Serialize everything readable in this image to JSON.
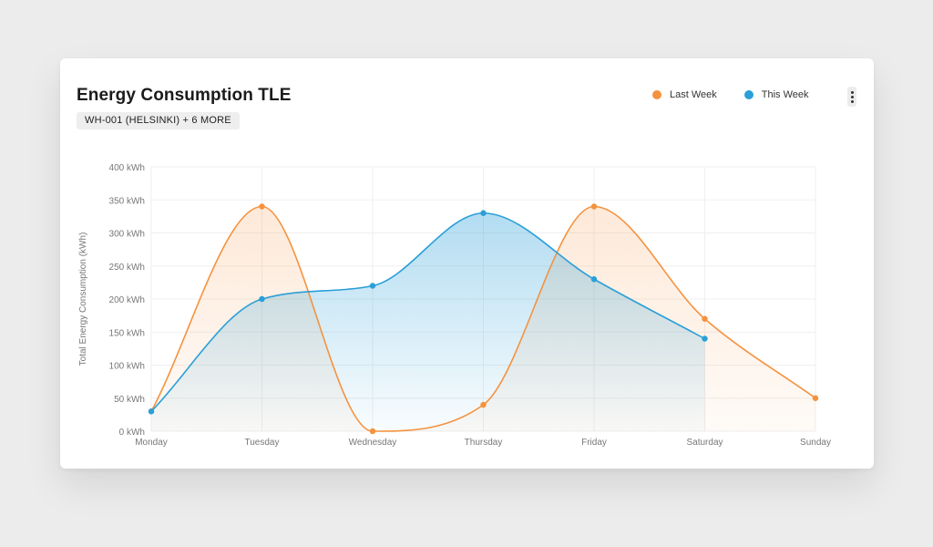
{
  "card": {
    "title": "Energy Consumption TLE",
    "badge": "WH-001 (HELSINKI) + 6 MORE",
    "menu_icon": "more-vertical-icon"
  },
  "chart_data": {
    "type": "area",
    "title": "Energy Consumption TLE",
    "subtitle": "WH-001 (HELSINKI) + 6 MORE",
    "categories": [
      "Monday",
      "Tuesday",
      "Wednesday",
      "Thursday",
      "Friday",
      "Saturday",
      "Sunday"
    ],
    "ylabel": "Total Energy Consumption (kWh)",
    "xlabel": "",
    "ylim": [
      0,
      400
    ],
    "yticks": [
      0,
      50,
      100,
      150,
      200,
      250,
      300,
      350,
      400
    ],
    "yunit": "kWh",
    "grid": true,
    "smooth": true,
    "legend_position": "top-right",
    "series": [
      {
        "name": "Last Week",
        "color": "#f5923e",
        "values": [
          30,
          340,
          0,
          40,
          340,
          170,
          50
        ]
      },
      {
        "name": "This Week",
        "color": "#2a9fd8",
        "values": [
          30,
          200,
          220,
          330,
          230,
          140,
          null
        ]
      }
    ]
  }
}
